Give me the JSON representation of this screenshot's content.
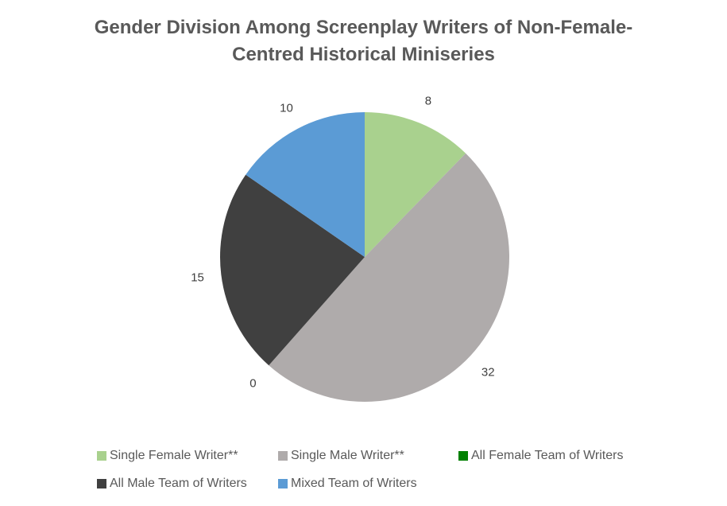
{
  "chart_data": {
    "type": "pie",
    "title_lines": [
      "Gender Division Among Screenplay Writers of Non-Female-",
      "Centred Historical Miniseries"
    ],
    "categories": [
      "Single Female Writer**",
      "Single Male Writer**",
      "All Female Team of Writers",
      "All Male Team of Writers",
      "Mixed Team of Writers"
    ],
    "values": [
      8,
      32,
      0,
      15,
      10
    ],
    "data_labels": [
      "8",
      "32",
      "0",
      "15",
      "10"
    ],
    "colors": [
      "#a9d18e",
      "#afabab",
      "#008000",
      "#404040",
      "#5b9bd5"
    ],
    "legend_position": "bottom"
  }
}
